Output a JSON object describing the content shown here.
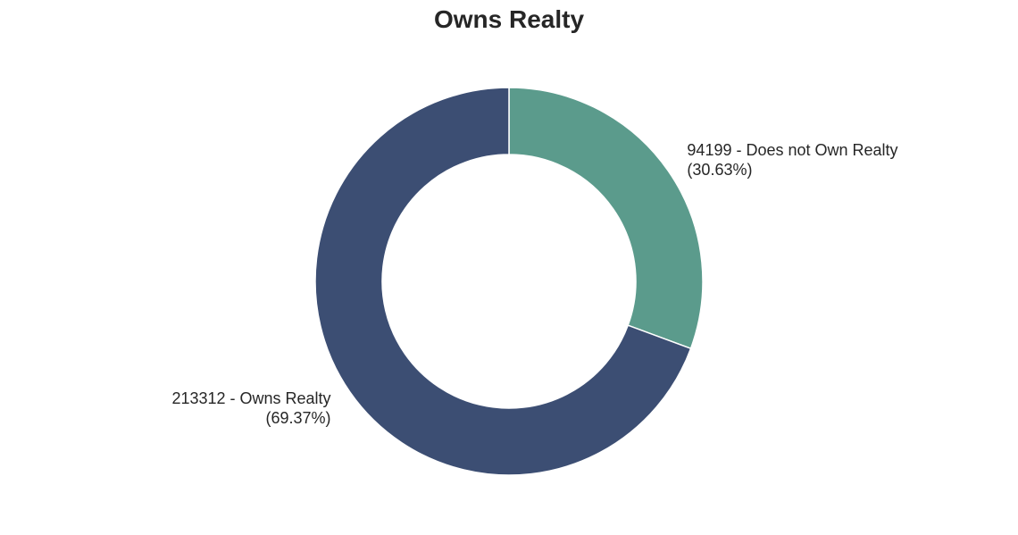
{
  "chart_data": {
    "type": "pie",
    "title": "Owns Realty",
    "donut": true,
    "slices": [
      {
        "value": 94199,
        "percent": 30.63,
        "color": "#5b9b8c",
        "label_line1": "94199  - Does not Own Realty",
        "label_line2": "(30.63%)"
      },
      {
        "value": 213312,
        "percent": 69.37,
        "color": "#3c4e73",
        "label_line1": "213312  - Owns Realty",
        "label_line2": "(69.37%)"
      }
    ]
  }
}
